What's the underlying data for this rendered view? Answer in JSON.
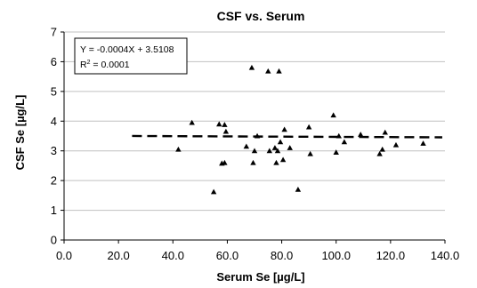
{
  "chart_data": {
    "type": "scatter",
    "title": "CSF vs. Serum",
    "xlabel": "Serum Se [µg/L]",
    "ylabel": "CSF Se [µg/L]",
    "xlim": [
      0,
      140
    ],
    "ylim": [
      0,
      7
    ],
    "x_ticks": [
      "0.0",
      "20.0",
      "40.0",
      "60.0",
      "80.0",
      "100.0",
      "120.0",
      "140.0"
    ],
    "y_ticks": [
      "0",
      "1",
      "2",
      "3",
      "4",
      "5",
      "6",
      "7"
    ],
    "grid": "horizontal",
    "marker": "triangle",
    "points": [
      {
        "x": 42,
        "y": 3.05
      },
      {
        "x": 47,
        "y": 3.95
      },
      {
        "x": 55,
        "y": 1.62
      },
      {
        "x": 57,
        "y": 3.9
      },
      {
        "x": 58,
        "y": 2.58
      },
      {
        "x": 59,
        "y": 2.6
      },
      {
        "x": 59,
        "y": 3.88
      },
      {
        "x": 59.5,
        "y": 3.65
      },
      {
        "x": 67,
        "y": 3.15
      },
      {
        "x": 69,
        "y": 5.8
      },
      {
        "x": 69.5,
        "y": 2.6
      },
      {
        "x": 70,
        "y": 3.0
      },
      {
        "x": 71,
        "y": 3.5
      },
      {
        "x": 75,
        "y": 5.68
      },
      {
        "x": 75.5,
        "y": 3.0
      },
      {
        "x": 77.5,
        "y": 3.1
      },
      {
        "x": 78,
        "y": 2.6
      },
      {
        "x": 78.5,
        "y": 3.0
      },
      {
        "x": 79,
        "y": 5.68
      },
      {
        "x": 79.5,
        "y": 3.3
      },
      {
        "x": 80.5,
        "y": 2.7
      },
      {
        "x": 81,
        "y": 3.72
      },
      {
        "x": 83,
        "y": 3.1
      },
      {
        "x": 86,
        "y": 1.7
      },
      {
        "x": 90,
        "y": 3.8
      },
      {
        "x": 90.5,
        "y": 2.9
      },
      {
        "x": 99,
        "y": 4.2
      },
      {
        "x": 100,
        "y": 2.95
      },
      {
        "x": 101,
        "y": 3.5
      },
      {
        "x": 103,
        "y": 3.3
      },
      {
        "x": 109,
        "y": 3.55
      },
      {
        "x": 116,
        "y": 2.9
      },
      {
        "x": 117,
        "y": 3.05
      },
      {
        "x": 118,
        "y": 3.62
      },
      {
        "x": 122,
        "y": 3.2
      },
      {
        "x": 132,
        "y": 3.25
      }
    ],
    "trendline": {
      "slope": -0.0004,
      "intercept": 3.5108,
      "x_range": [
        25,
        139
      ],
      "style": "dashed"
    },
    "equation": {
      "line1": "Y = -0.0004X + 3.5108",
      "r2_prefix": "R",
      "r2_exp": "2",
      "r2_suffix": " = 0.0001"
    }
  },
  "colors": {
    "marker": "#000000",
    "trendline": "#000000",
    "grid": "#c0c0c0",
    "axis": "#000000"
  }
}
